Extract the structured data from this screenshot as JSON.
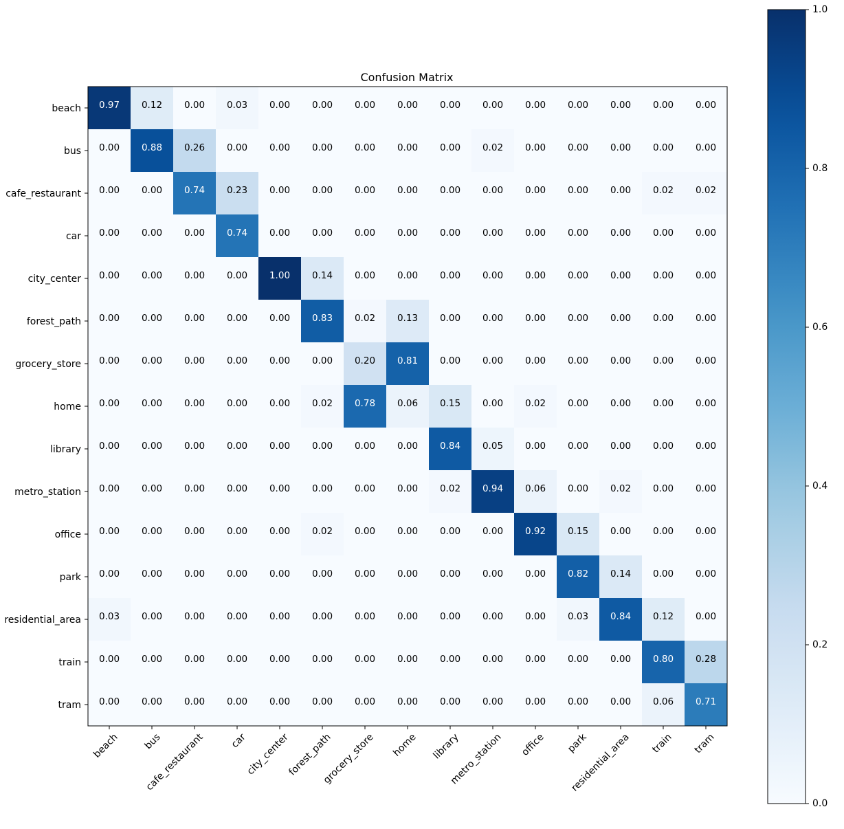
{
  "chart_data": {
    "type": "heatmap",
    "title": "Confusion Matrix",
    "xlabel": "",
    "ylabel": "",
    "labels": [
      "beach",
      "bus",
      "cafe_restaurant",
      "car",
      "city_center",
      "forest_path",
      "grocery_store",
      "home",
      "library",
      "metro_station",
      "office",
      "park",
      "residential_area",
      "train",
      "tram"
    ],
    "matrix": [
      [
        0.97,
        0.12,
        0.0,
        0.03,
        0.0,
        0.0,
        0.0,
        0.0,
        0.0,
        0.0,
        0.0,
        0.0,
        0.0,
        0.0,
        0.0
      ],
      [
        0.0,
        0.88,
        0.26,
        0.0,
        0.0,
        0.0,
        0.0,
        0.0,
        0.0,
        0.02,
        0.0,
        0.0,
        0.0,
        0.0,
        0.0
      ],
      [
        0.0,
        0.0,
        0.74,
        0.23,
        0.0,
        0.0,
        0.0,
        0.0,
        0.0,
        0.0,
        0.0,
        0.0,
        0.0,
        0.02,
        0.02
      ],
      [
        0.0,
        0.0,
        0.0,
        0.74,
        0.0,
        0.0,
        0.0,
        0.0,
        0.0,
        0.0,
        0.0,
        0.0,
        0.0,
        0.0,
        0.0
      ],
      [
        0.0,
        0.0,
        0.0,
        0.0,
        1.0,
        0.14,
        0.0,
        0.0,
        0.0,
        0.0,
        0.0,
        0.0,
        0.0,
        0.0,
        0.0
      ],
      [
        0.0,
        0.0,
        0.0,
        0.0,
        0.0,
        0.83,
        0.02,
        0.13,
        0.0,
        0.0,
        0.0,
        0.0,
        0.0,
        0.0,
        0.0
      ],
      [
        0.0,
        0.0,
        0.0,
        0.0,
        0.0,
        0.0,
        0.2,
        0.81,
        0.0,
        0.0,
        0.0,
        0.0,
        0.0,
        0.0,
        0.0
      ],
      [
        0.0,
        0.0,
        0.0,
        0.0,
        0.0,
        0.02,
        0.78,
        0.06,
        0.15,
        0.0,
        0.02,
        0.0,
        0.0,
        0.0,
        0.0
      ],
      [
        0.0,
        0.0,
        0.0,
        0.0,
        0.0,
        0.0,
        0.0,
        0.0,
        0.84,
        0.05,
        0.0,
        0.0,
        0.0,
        0.0,
        0.0
      ],
      [
        0.0,
        0.0,
        0.0,
        0.0,
        0.0,
        0.0,
        0.0,
        0.0,
        0.02,
        0.94,
        0.06,
        0.0,
        0.02,
        0.0,
        0.0
      ],
      [
        0.0,
        0.0,
        0.0,
        0.0,
        0.0,
        0.02,
        0.0,
        0.0,
        0.0,
        0.0,
        0.92,
        0.15,
        0.0,
        0.0,
        0.0
      ],
      [
        0.0,
        0.0,
        0.0,
        0.0,
        0.0,
        0.0,
        0.0,
        0.0,
        0.0,
        0.0,
        0.0,
        0.82,
        0.14,
        0.0,
        0.0
      ],
      [
        0.03,
        0.0,
        0.0,
        0.0,
        0.0,
        0.0,
        0.0,
        0.0,
        0.0,
        0.0,
        0.0,
        0.03,
        0.84,
        0.12,
        0.0
      ],
      [
        0.0,
        0.0,
        0.0,
        0.0,
        0.0,
        0.0,
        0.0,
        0.0,
        0.0,
        0.0,
        0.0,
        0.0,
        0.0,
        0.8,
        0.28
      ],
      [
        0.0,
        0.0,
        0.0,
        0.0,
        0.0,
        0.0,
        0.0,
        0.0,
        0.0,
        0.0,
        0.0,
        0.0,
        0.0,
        0.06,
        0.71
      ]
    ],
    "value_range": [
      0.0,
      1.0
    ],
    "colormap": "Blues",
    "colorbar": {
      "ticks": [
        0.0,
        0.2,
        0.4,
        0.6,
        0.8,
        1.0
      ],
      "tick_labels": [
        "0.0",
        "0.2",
        "0.4",
        "0.6",
        "0.8",
        "1.0"
      ],
      "placement": "right"
    },
    "text_color_light": "#ffffff",
    "text_color_dark": "#000000",
    "text_threshold": 0.5,
    "grid": false
  }
}
